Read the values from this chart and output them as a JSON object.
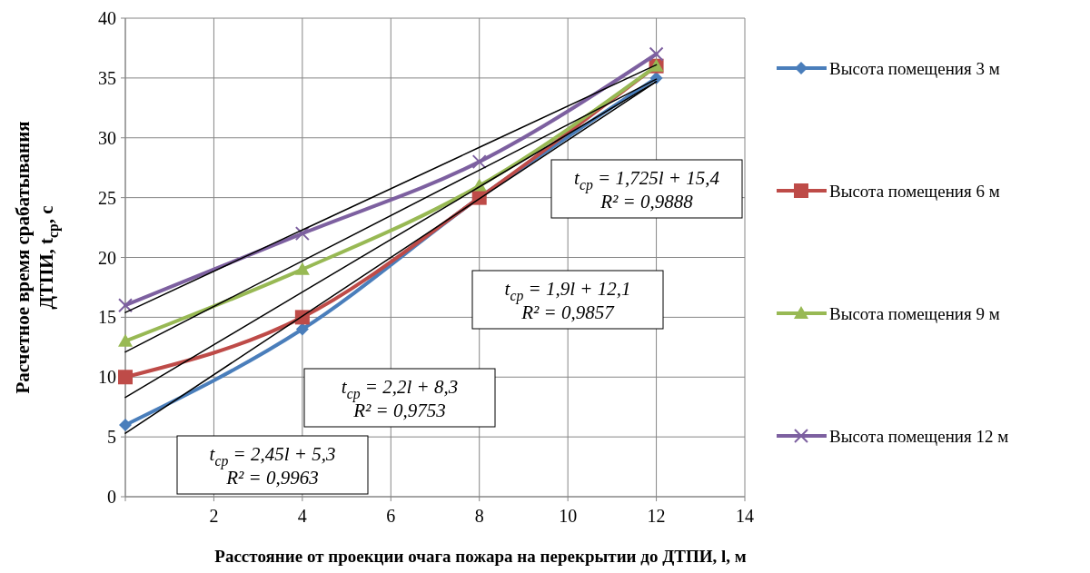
{
  "chart_data": {
    "type": "line",
    "xlabel": "Расстояние от проекции очага пожара на перекрытии до ДТПИ, l, м",
    "ylabel": "Расчетное время срабатывания\nДТПИ, t$_{cp}$,  с",
    "xlim": [
      0,
      14
    ],
    "xticks": [
      {
        "value": 0,
        "label": null
      },
      2,
      4,
      6,
      8,
      10,
      12,
      14
    ],
    "ylim": [
      0,
      40
    ],
    "yticks": [
      0,
      5,
      10,
      15,
      20,
      25,
      30,
      35,
      40
    ],
    "grid": true,
    "legend": "right",
    "x": [
      0,
      4,
      8,
      12
    ],
    "series": [
      {
        "name": "Высота помещения 3 м",
        "color": "#4a7ebb",
        "marker": "diamond",
        "values": [
          6,
          14,
          25,
          35
        ]
      },
      {
        "name": "Высота помещения 6 м",
        "color": "#be4b48",
        "marker": "square",
        "values": [
          10,
          15,
          25,
          36
        ]
      },
      {
        "name": "Высота помещения 9 м",
        "color": "#98b954",
        "marker": "triangle",
        "values": [
          13,
          19,
          26,
          36
        ]
      },
      {
        "name": "Высота помещения 12 м",
        "color": "#7d60a0",
        "marker": "cross",
        "values": [
          16,
          22,
          28,
          37
        ]
      },
      {
        "type": "line",
        "color": "#000000",
        "marker": "none",
        "values": [
          5.3,
          15.1,
          24.9,
          34.7
        ]
      },
      {
        "type": "line",
        "color": "#000000",
        "marker": "none",
        "values": [
          8.3,
          17.1,
          25.9,
          34.7
        ]
      },
      {
        "type": "line",
        "color": "#000000",
        "marker": "none",
        "values": [
          12.1,
          19.7,
          27.3,
          34.9
        ]
      },
      {
        "type": "line",
        "color": "#000000",
        "marker": "none",
        "values": [
          15.4,
          22.3,
          29.2,
          36.1
        ]
      }
    ],
    "annotations": [
      "t$_{cp}$ = 2,45l + 5,3\nR² = 0,9963",
      "t$_{cp}$ = 2,2l + 8,3\nR² = 0,9753",
      "t$_{cp}$ = 1,9l + 12,1\nR² = 0,9857",
      "t$_{cp}$ = 1,725l + 15,4\nR² = 0,9888"
    ]
  }
}
